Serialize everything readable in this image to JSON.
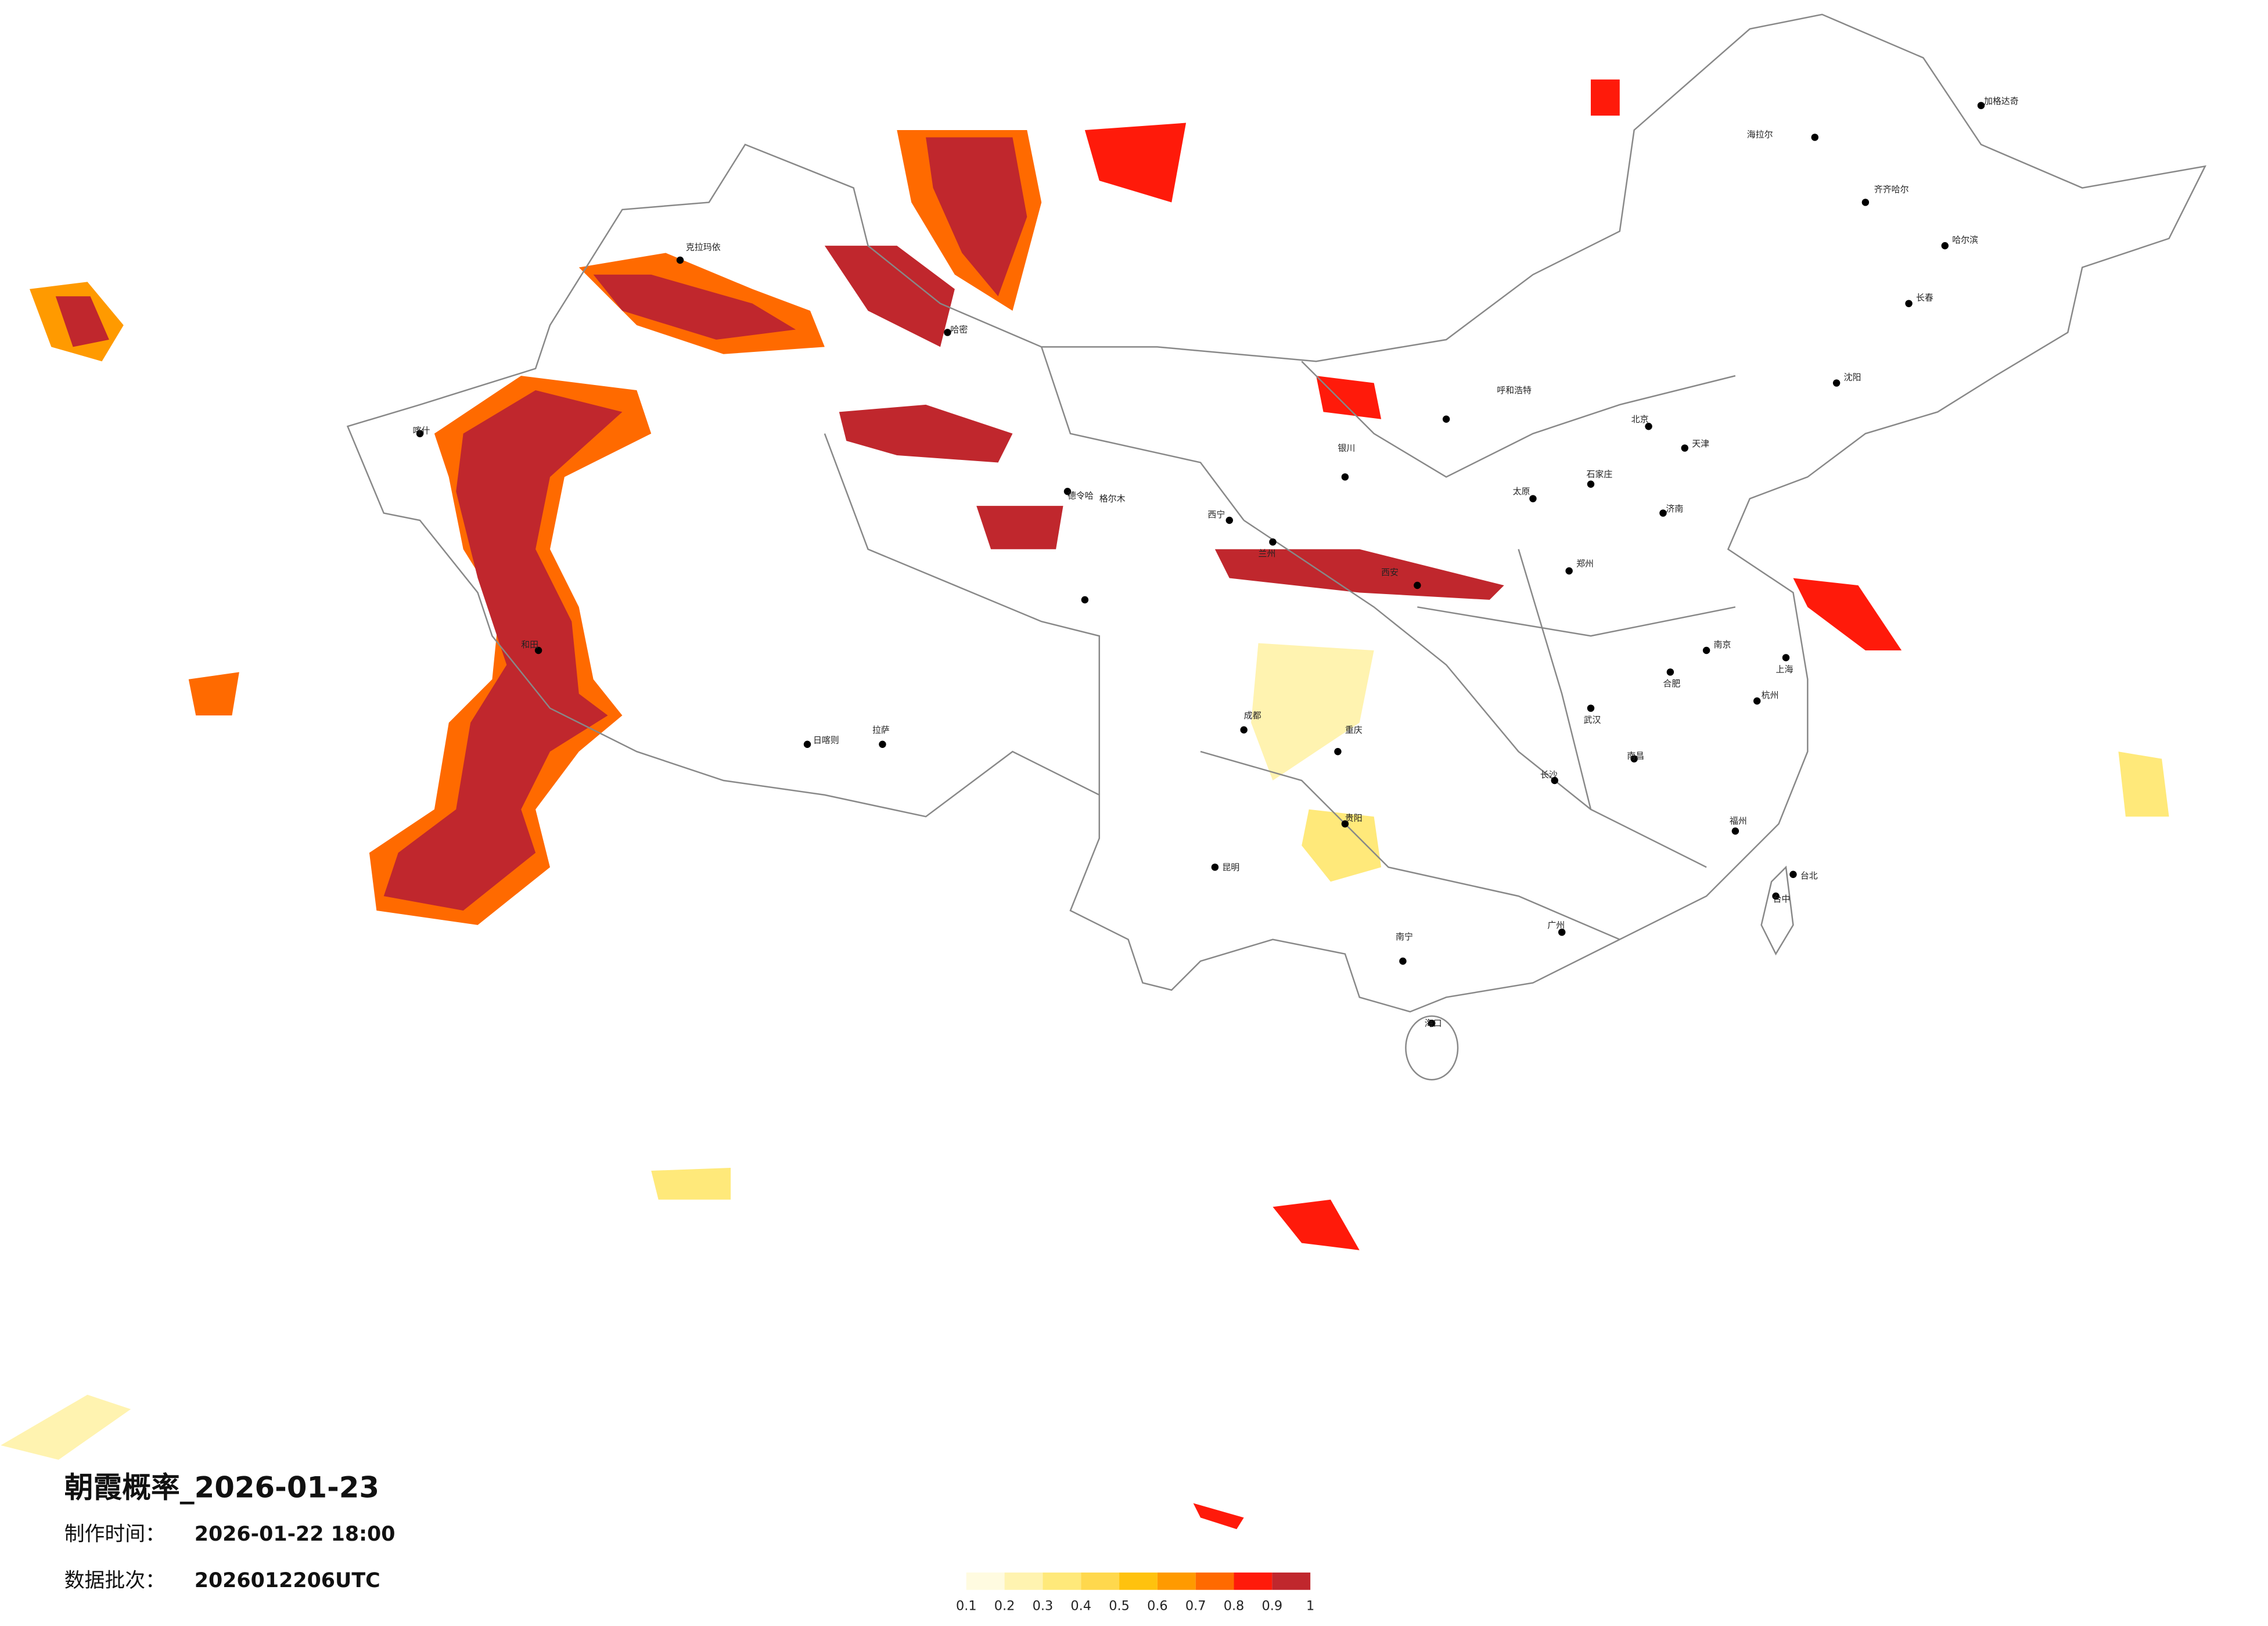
{
  "header": {
    "title": "朝霞概率_2026-01-23",
    "made_label": "制作时间：",
    "made_time": "2026-01-22 18:00",
    "batch_label": "数据批次：",
    "batch": "2026012206UTC"
  },
  "colorbar": {
    "ticks": [
      0.1,
      0.2,
      0.3,
      0.4,
      0.5,
      0.6,
      0.7,
      0.8,
      0.9,
      1
    ],
    "colors": [
      "#fffbe0",
      "#fff3b0",
      "#ffe97a",
      "#ffd84d",
      "#ffc20e",
      "#ff9a00",
      "#ff6a00",
      "#ff1a0a",
      "#c0272d"
    ]
  },
  "cities": [
    "加格达奇",
    "海拉尔",
    "齐齐哈尔",
    "哈尔滨",
    "长春",
    "沈阳",
    "北京",
    "天津",
    "石家庄",
    "太原",
    "呼和浩特",
    "银川",
    "兰州",
    "西宁",
    "西安",
    "郑州",
    "济南",
    "南京",
    "上海",
    "杭州",
    "合肥",
    "武汉",
    "长沙",
    "南昌",
    "福州",
    "广州",
    "南宁",
    "贵阳",
    "昆明",
    "成都",
    "重庆",
    "拉萨",
    "日喀则",
    "格尔木",
    "德令哈",
    "哈密",
    "克拉玛依",
    "喀什",
    "和田",
    "海口",
    "台北",
    "台中"
  ]
}
